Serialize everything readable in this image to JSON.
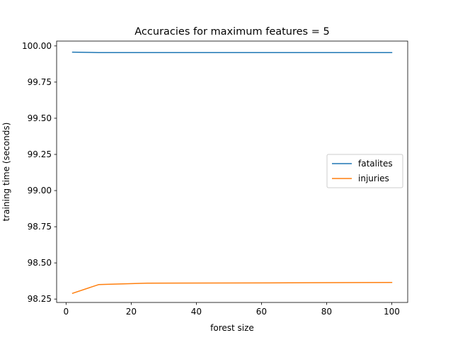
{
  "chart_data": {
    "type": "line",
    "title": "Accuracies for maximum features  = 5",
    "xlabel": "forest size",
    "ylabel": "training time (seconds)",
    "xlim": [
      -2.9,
      104.9
    ],
    "ylim": [
      98.2265,
      100.0335
    ],
    "xticks": [
      0,
      20,
      40,
      60,
      80,
      100
    ],
    "yticks": [
      98.25,
      98.5,
      98.75,
      99.0,
      99.25,
      99.5,
      99.75,
      100.0
    ],
    "ytick_labels": [
      "98.25",
      "98.50",
      "98.75",
      "99.00",
      "99.25",
      "99.50",
      "99.75",
      "100.00"
    ],
    "grid": false,
    "legend_position": "center-right",
    "series": [
      {
        "name": "fatalites",
        "color": "#1f77b4",
        "x": [
          2,
          10,
          25,
          50,
          75,
          100
        ],
        "values": [
          99.957,
          99.954,
          99.954,
          99.954,
          99.954,
          99.954
        ]
      },
      {
        "name": "injuries",
        "color": "#ff7f0e",
        "x": [
          2,
          10,
          25,
          50,
          75,
          100
        ],
        "values": [
          98.29,
          98.35,
          98.36,
          98.361,
          98.363,
          98.365
        ]
      }
    ]
  }
}
